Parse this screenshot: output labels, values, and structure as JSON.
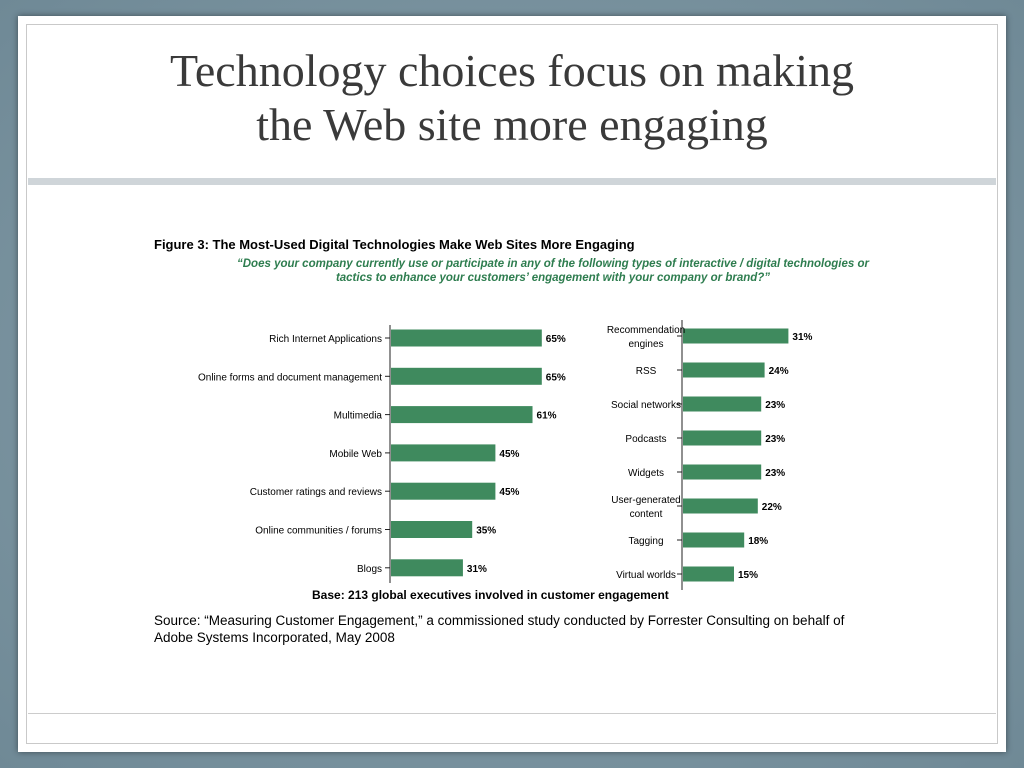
{
  "slide": {
    "title_line1": "Technology choices focus on making",
    "title_line2": "the Web site more engaging"
  },
  "figure": {
    "title": "Figure 3: The Most-Used Digital Technologies Make Web Sites More Engaging",
    "question": "“Does your company currently use or participate in any of the following types of interactive / digital technologies or tactics to enhance your customers’ engagement with your company or brand?”",
    "base": "Base: 213 global executives involved in customer engagement",
    "source": "Source: “Measuring Customer Engagement,” a commissioned study conducted by Forrester Consulting on behalf of Adobe Systems Incorporated, May 2008"
  },
  "chart_data": [
    {
      "type": "bar",
      "orientation": "horizontal",
      "title": "",
      "xlabel": "",
      "ylabel": "",
      "xlim": [
        0,
        100
      ],
      "bar_color": "#3f8a5e",
      "categories": [
        "Rich Internet Applications",
        "Online forms and document management",
        "Multimedia",
        "Mobile Web",
        "Customer ratings and reviews",
        "Online communities / forums",
        "Blogs"
      ],
      "values": [
        65,
        65,
        61,
        45,
        45,
        35,
        31
      ],
      "value_labels": [
        "65%",
        "65%",
        "61%",
        "45%",
        "45%",
        "35%",
        "31%"
      ]
    },
    {
      "type": "bar",
      "orientation": "horizontal",
      "title": "",
      "xlabel": "",
      "ylabel": "",
      "xlim": [
        0,
        100
      ],
      "bar_color": "#3f8a5e",
      "categories": [
        "Recommendation engines",
        "RSS",
        "Social networks",
        "Podcasts",
        "Widgets",
        "User-generated content",
        "Tagging",
        "Virtual worlds"
      ],
      "values": [
        31,
        24,
        23,
        23,
        23,
        22,
        18,
        15
      ],
      "value_labels": [
        "31%",
        "24%",
        "23%",
        "23%",
        "23%",
        "22%",
        "18%",
        "15%"
      ]
    }
  ]
}
